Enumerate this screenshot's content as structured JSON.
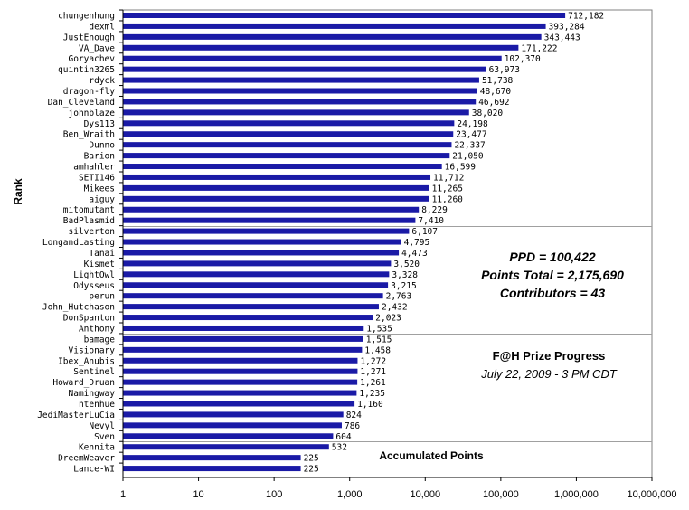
{
  "chart_data": {
    "type": "bar",
    "orientation": "horizontal",
    "x_scale": "log",
    "xlim": [
      1,
      10000000
    ],
    "x_ticks": [
      "1",
      "10",
      "100",
      "1,000",
      "10,000",
      "100,000",
      "1,000,000",
      "10,000,000"
    ],
    "ylabel": "Rank",
    "xlabel": "Accumulated Points",
    "grid": "horizontal",
    "bar_color": "#1a1aa6",
    "categories": [
      "chungenhung",
      "dexml",
      "JustEnough",
      "VA_Dave",
      "Goryachev",
      "quintin3265",
      "rdyck",
      "dragon-fly",
      "Dan_Cleveland",
      "johnblaze",
      "Dys113",
      "Ben_Wraith",
      "Dunno",
      "Barion",
      "amhahler",
      "SETI146",
      "Mikees",
      "aiguy",
      "mitomutant",
      "BadPlasmid",
      "silverton",
      "LongandLasting",
      "Tanai",
      "Kismet",
      "LightOwl",
      "Odysseus",
      "perun",
      "John_Hutchason",
      "DonSpanton",
      "Anthony",
      "bamage",
      "Visionary",
      "Ibex_Anubis",
      "Sentinel",
      "Howard_Druan",
      "Namingway",
      "ntenhue",
      "JediMasterLuCia",
      "Nevyl",
      "Sven",
      "Kennita",
      "DreemWeaver",
      "Lance-WI"
    ],
    "values": [
      712182,
      393284,
      343443,
      171222,
      102370,
      63973,
      51738,
      48670,
      46692,
      38020,
      24198,
      23477,
      22337,
      21050,
      16599,
      11712,
      11265,
      11260,
      8229,
      7410,
      6107,
      4795,
      4473,
      3520,
      3328,
      3215,
      2763,
      2432,
      2023,
      1535,
      1515,
      1458,
      1272,
      1271,
      1261,
      1235,
      1160,
      824,
      786,
      604,
      532,
      225,
      225
    ],
    "value_labels": [
      "712,182",
      "393,284",
      "343,443",
      "171,222",
      "102,370",
      "63,973",
      "51,738",
      "48,670",
      "46,692",
      "38,020",
      "24,198",
      "23,477",
      "22,337",
      "21,050",
      "16,599",
      "11,712",
      "11,265",
      "11,260",
      "8,229",
      "7,410",
      "6,107",
      "4,795",
      "4,473",
      "3,520",
      "3,328",
      "3,215",
      "2,763",
      "2,432",
      "2,023",
      "1,535",
      "1,515",
      "1,458",
      "1,272",
      "1,271",
      "1,261",
      "1,235",
      "1,160",
      "824",
      "786",
      "604",
      "532",
      "225",
      "225"
    ],
    "annotations": {
      "ppd": "PPD = 100,422",
      "points_total": "Points Total = 2,175,690",
      "contributors": "Contributors = 43",
      "title": "F@H Prize Progress",
      "subtitle": "July 22, 2009 - 3 PM CDT"
    }
  }
}
